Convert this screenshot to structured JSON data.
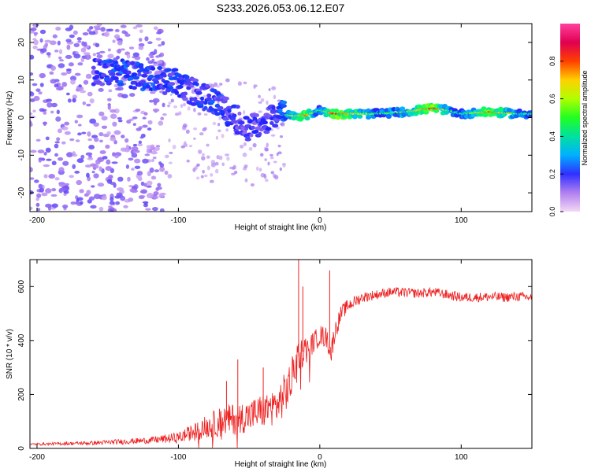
{
  "page_title": "S233.2026.053.06.12.E07",
  "chart_data": [
    {
      "type": "heatmap",
      "title": "S233.2026.053.06.12.E07",
      "xlabel": "Height of straight line (km)",
      "ylabel": "Frequency (Hz)",
      "xlim": [
        -205,
        150
      ],
      "ylim": [
        -25,
        25
      ],
      "xticks": [
        -200,
        -100,
        0,
        100
      ],
      "yticks": [
        -20,
        -10,
        0,
        10,
        20
      ],
      "colorbar": {
        "label": "Normalized spectral amplitude",
        "range": [
          0,
          1
        ],
        "ticks": [
          "0.0",
          "0.2",
          "0.4",
          "0.6",
          "0.8"
        ],
        "colors": [
          "#f4d8f4",
          "#a070f0",
          "#2020ff",
          "#00c0ff",
          "#00ff60",
          "#a0ff00",
          "#ffd000",
          "#ff5000",
          "#e00050",
          "#ff40a0"
        ]
      },
      "ridge": [
        {
          "x": -160,
          "y": 12,
          "a": 0.3
        },
        {
          "x": -150,
          "y": 12,
          "a": 0.35
        },
        {
          "x": -140,
          "y": 12,
          "a": 0.4
        },
        {
          "x": -130,
          "y": 11,
          "a": 0.35
        },
        {
          "x": -120,
          "y": 11,
          "a": 0.4
        },
        {
          "x": -110,
          "y": 10,
          "a": 0.35
        },
        {
          "x": -100,
          "y": 9,
          "a": 0.35
        },
        {
          "x": -90,
          "y": 7,
          "a": 0.3
        },
        {
          "x": -80,
          "y": 5,
          "a": 0.35
        },
        {
          "x": -70,
          "y": 3,
          "a": 0.35
        },
        {
          "x": -60,
          "y": 0,
          "a": 0.3
        },
        {
          "x": -50,
          "y": -3,
          "a": 0.3
        },
        {
          "x": -40,
          "y": -1,
          "a": 0.3
        },
        {
          "x": -30,
          "y": 1,
          "a": 0.35
        },
        {
          "x": -20,
          "y": 0.5,
          "a": 0.55
        },
        {
          "x": -10,
          "y": 0.5,
          "a": 0.75
        },
        {
          "x": 0,
          "y": 2,
          "a": 0.4
        },
        {
          "x": 10,
          "y": 1,
          "a": 0.85
        },
        {
          "x": 20,
          "y": 1,
          "a": 0.7
        },
        {
          "x": 40,
          "y": 1,
          "a": 0.45
        },
        {
          "x": 60,
          "y": 1.5,
          "a": 0.5
        },
        {
          "x": 80,
          "y": 2.5,
          "a": 0.85
        },
        {
          "x": 90,
          "y": 2,
          "a": 0.5
        },
        {
          "x": 100,
          "y": 1,
          "a": 0.4
        },
        {
          "x": 120,
          "y": 1.5,
          "a": 0.8
        },
        {
          "x": 140,
          "y": 1,
          "a": 0.45
        },
        {
          "x": 150,
          "y": 1,
          "a": 0.45
        }
      ]
    },
    {
      "type": "line",
      "xlabel": "Height of straight line (km)",
      "ylabel": "SNR (10 * v/v)",
      "xlim": [
        -205,
        150
      ],
      "ylim": [
        0,
        700
      ],
      "xticks": [
        -200,
        -100,
        0,
        100
      ],
      "yticks": [
        0,
        200,
        400,
        600
      ],
      "color": "#ee2020",
      "series": [
        {
          "name": "SNR",
          "x": [
            -205,
            -180,
            -160,
            -140,
            -120,
            -100,
            -90,
            -80,
            -70,
            -60,
            -50,
            -40,
            -30,
            -25,
            -20,
            -18,
            -15,
            -10,
            -5,
            0,
            5,
            8,
            10,
            15,
            20,
            30,
            40,
            50,
            60,
            70,
            80,
            90,
            100,
            110,
            120,
            130,
            140,
            150
          ],
          "values": [
            15,
            18,
            20,
            25,
            30,
            40,
            60,
            80,
            100,
            110,
            120,
            140,
            160,
            200,
            250,
            310,
            340,
            370,
            390,
            420,
            410,
            350,
            420,
            500,
            530,
            560,
            570,
            580,
            578,
            575,
            580,
            570,
            560,
            560,
            562,
            560,
            563,
            560
          ],
          "noise": [
            4,
            6,
            8,
            10,
            12,
            20,
            30,
            45,
            55,
            60,
            60,
            65,
            70,
            80,
            80,
            70,
            60,
            50,
            40,
            40,
            40,
            40,
            40,
            30,
            25,
            20,
            18,
            18,
            18,
            18,
            18,
            18,
            18,
            18,
            18,
            18,
            18,
            18
          ]
        }
      ],
      "spikes": [
        {
          "x": -66,
          "y": 250
        },
        {
          "x": -58,
          "y": 330
        },
        {
          "x": -40,
          "y": 300
        },
        {
          "x": -15,
          "y": 700
        },
        {
          "x": -12,
          "y": 600
        },
        {
          "x": 7,
          "y": 660
        },
        {
          "x": 8,
          "y": 150
        }
      ]
    }
  ]
}
